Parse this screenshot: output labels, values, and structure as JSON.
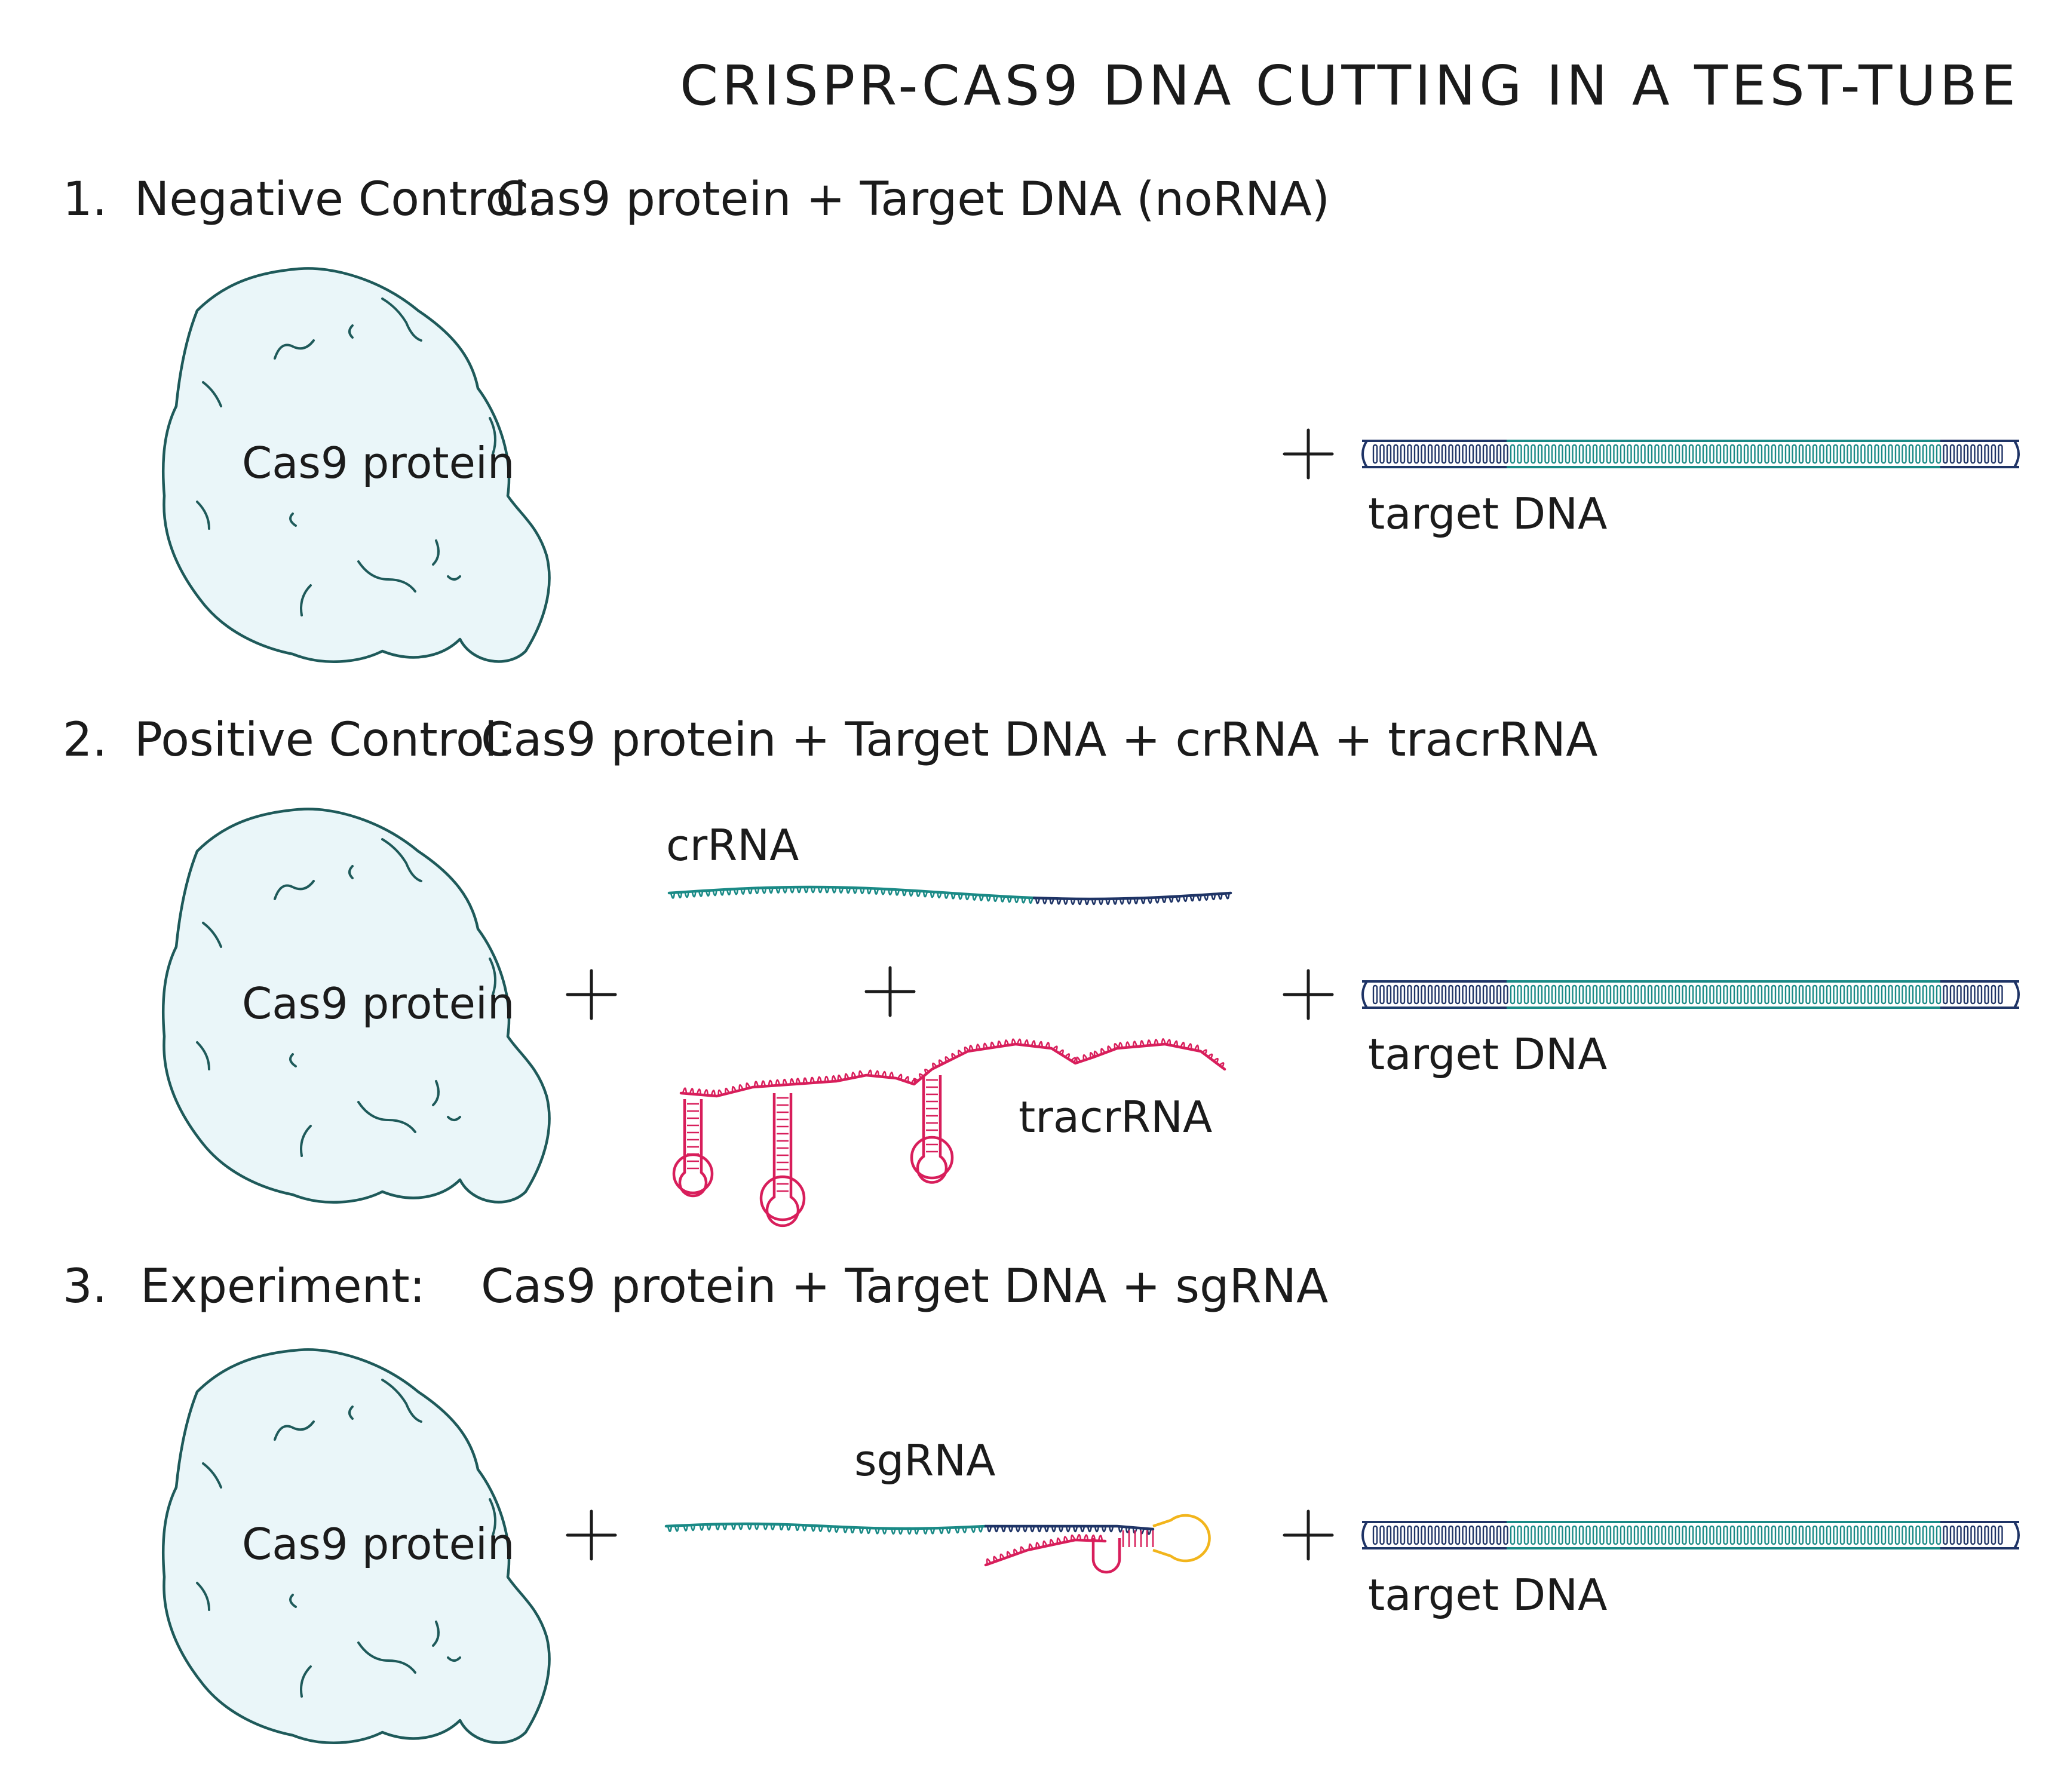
{
  "title": "CRISPR-CAS9 DNA CUTTING IN A TEST-TUBE",
  "sections": [
    {
      "number": "1.",
      "name": "Negative Control:",
      "formula": "Cas9 protein + Target DNA (noRNA)",
      "protein_label": "Cas9 protein",
      "dna_label": "target DNA"
    },
    {
      "number": "2.",
      "name": "Positive Control:",
      "formula": "Cas9 protein + Target DNA + crRNA + tracrRNA",
      "protein_label": "Cas9 protein",
      "crrna_label": "crRNA",
      "tracrrna_label": "tracrRNA",
      "dna_label": "target DNA"
    },
    {
      "number": "3.",
      "name": "Experiment:",
      "formula": "Cas9 protein + Target DNA + sgRNA",
      "protein_label": "Cas9 protein",
      "sgrna_label": "sgRNA",
      "dna_label": "target DNA"
    }
  ],
  "colors": {
    "protein_fill": "#eaf6f9",
    "protein_outline": "#1e5a5a",
    "teal": "#1a8a86",
    "navy": "#1f3466",
    "magenta": "#d81e5b",
    "yellow": "#f2b51c",
    "ink": "#1b1b1b"
  }
}
